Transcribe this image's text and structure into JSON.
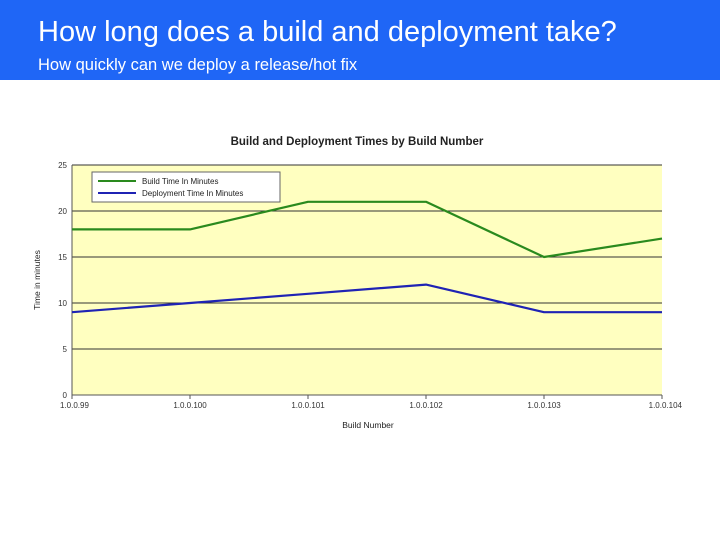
{
  "slide": {
    "title": "How long does a build and deployment take?",
    "subtitle": "How quickly can we deploy a release/hot fix"
  },
  "colors": {
    "header_bg": "#1f66f6",
    "plot_bg": "#ffffc0",
    "series_build": "#2a8a1e",
    "series_deploy": "#1f23b4"
  },
  "chart_data": {
    "type": "line",
    "title": "Build and Deployment Times by Build Number",
    "xlabel": "Build Number",
    "ylabel": "Time in minutes",
    "categories": [
      "1.0.0.99",
      "1.0.0.100",
      "1.0.0.101",
      "1.0.0.102",
      "1.0.0.103",
      "1.0.0.104"
    ],
    "ylim": [
      0,
      25
    ],
    "yticks": [
      "0",
      "5",
      "10",
      "15",
      "20",
      "25"
    ],
    "grid": true,
    "legend_position": "top-left",
    "series": [
      {
        "name": "Build Time In Minutes",
        "color": "#2a8a1e",
        "values": [
          18,
          18,
          21,
          21,
          15,
          17
        ]
      },
      {
        "name": "Deployment Time In Minutes",
        "color": "#1f23b4",
        "values": [
          9,
          10,
          11,
          12,
          9,
          9
        ]
      }
    ]
  }
}
